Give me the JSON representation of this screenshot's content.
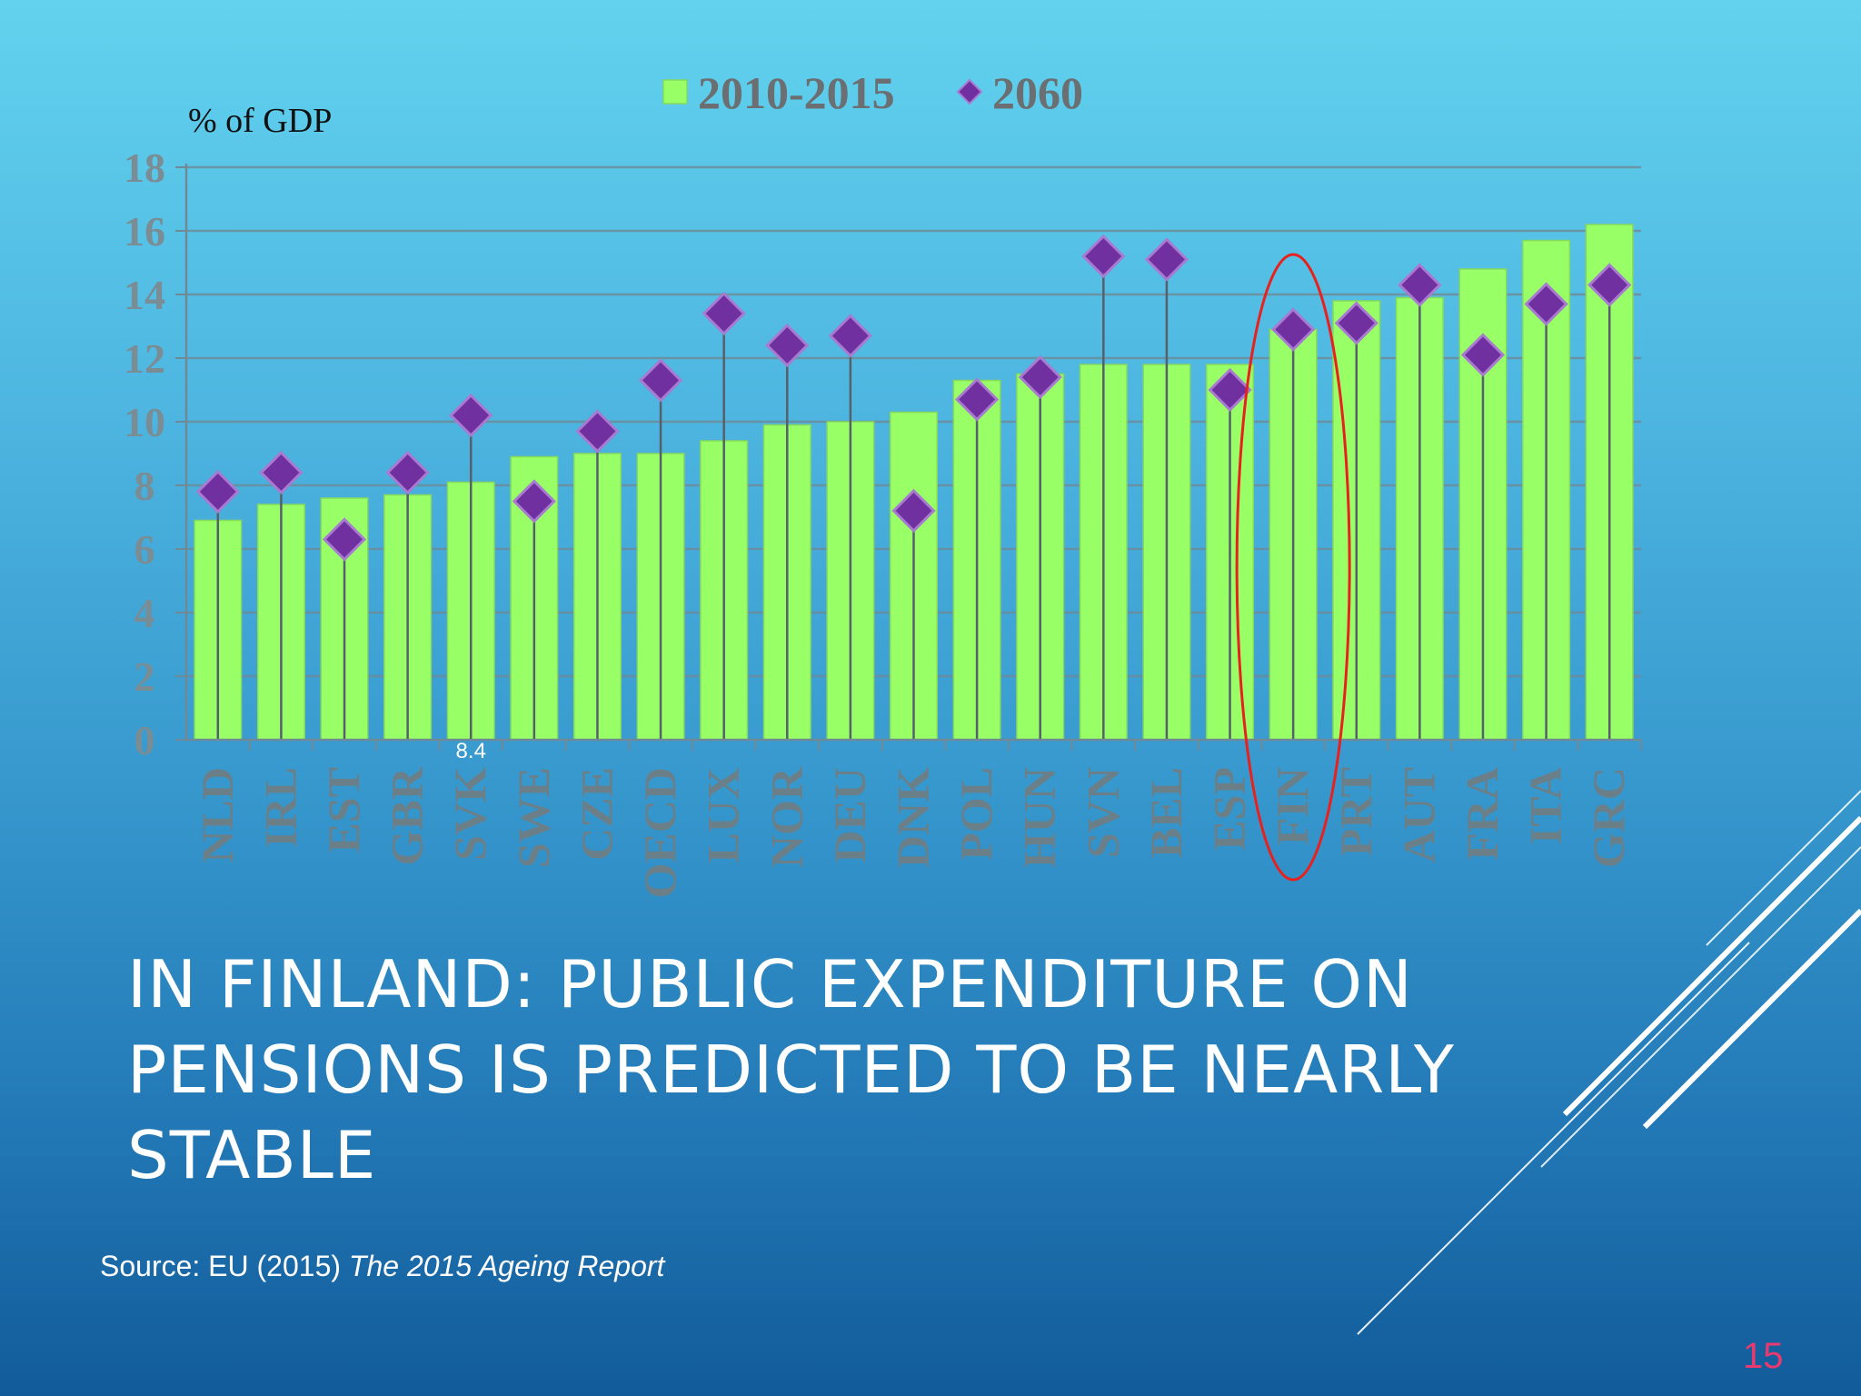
{
  "slide": {
    "title_lines": [
      "IN FINLAND: PUBLIC EXPENDITURE ON",
      "PENSIONS IS PREDICTED TO BE NEARLY",
      "STABLE"
    ],
    "source_prefix": "Source:  EU (2015) ",
    "source_title": "The 2015 Ageing Report",
    "page_number": "15"
  },
  "colors": {
    "bar": "#99ff66",
    "bar_stroke": "#86d85c",
    "marker": "#7030a0",
    "marker_stroke": "#a87ad0",
    "highlight": "#e8211f",
    "page_number": "#e83a6e"
  },
  "chart_data": {
    "type": "bar",
    "ylabel": "% of GDP",
    "ylim": [
      0,
      18
    ],
    "yticks": [
      "0",
      "2",
      "4",
      "6",
      "8",
      "10",
      "12",
      "14",
      "16",
      "18"
    ],
    "grid": true,
    "legend_position": "top",
    "categories": [
      "NLD",
      "IRL",
      "EST",
      "GBR",
      "SVK",
      "SWE",
      "CZE",
      "OECD",
      "LUX",
      "NOR",
      "DEU",
      "DNK",
      "POL",
      "HUN",
      "SVN",
      "BEL",
      "ESP",
      "FIN",
      "PRT",
      "AUT",
      "FRA",
      "ITA",
      "GRC"
    ],
    "series": [
      {
        "name": "2010-2015",
        "kind": "bar",
        "values": [
          6.9,
          7.4,
          7.6,
          7.7,
          8.1,
          8.9,
          9.0,
          9.0,
          9.4,
          9.9,
          10.0,
          10.3,
          11.3,
          11.5,
          11.8,
          11.8,
          11.8,
          12.9,
          13.8,
          13.9,
          14.8,
          15.7,
          16.2
        ]
      },
      {
        "name": "2060",
        "kind": "marker",
        "values": [
          7.8,
          8.4,
          6.3,
          8.4,
          10.2,
          7.5,
          9.7,
          11.3,
          13.4,
          12.4,
          12.7,
          7.2,
          10.7,
          11.4,
          15.2,
          15.1,
          11.0,
          12.9,
          13.1,
          14.3,
          12.1,
          13.7,
          14.3
        ]
      }
    ],
    "annotations": [
      {
        "text": "8.4",
        "category": "SVK"
      },
      {
        "type": "ellipse-highlight",
        "category": "FIN"
      }
    ]
  }
}
